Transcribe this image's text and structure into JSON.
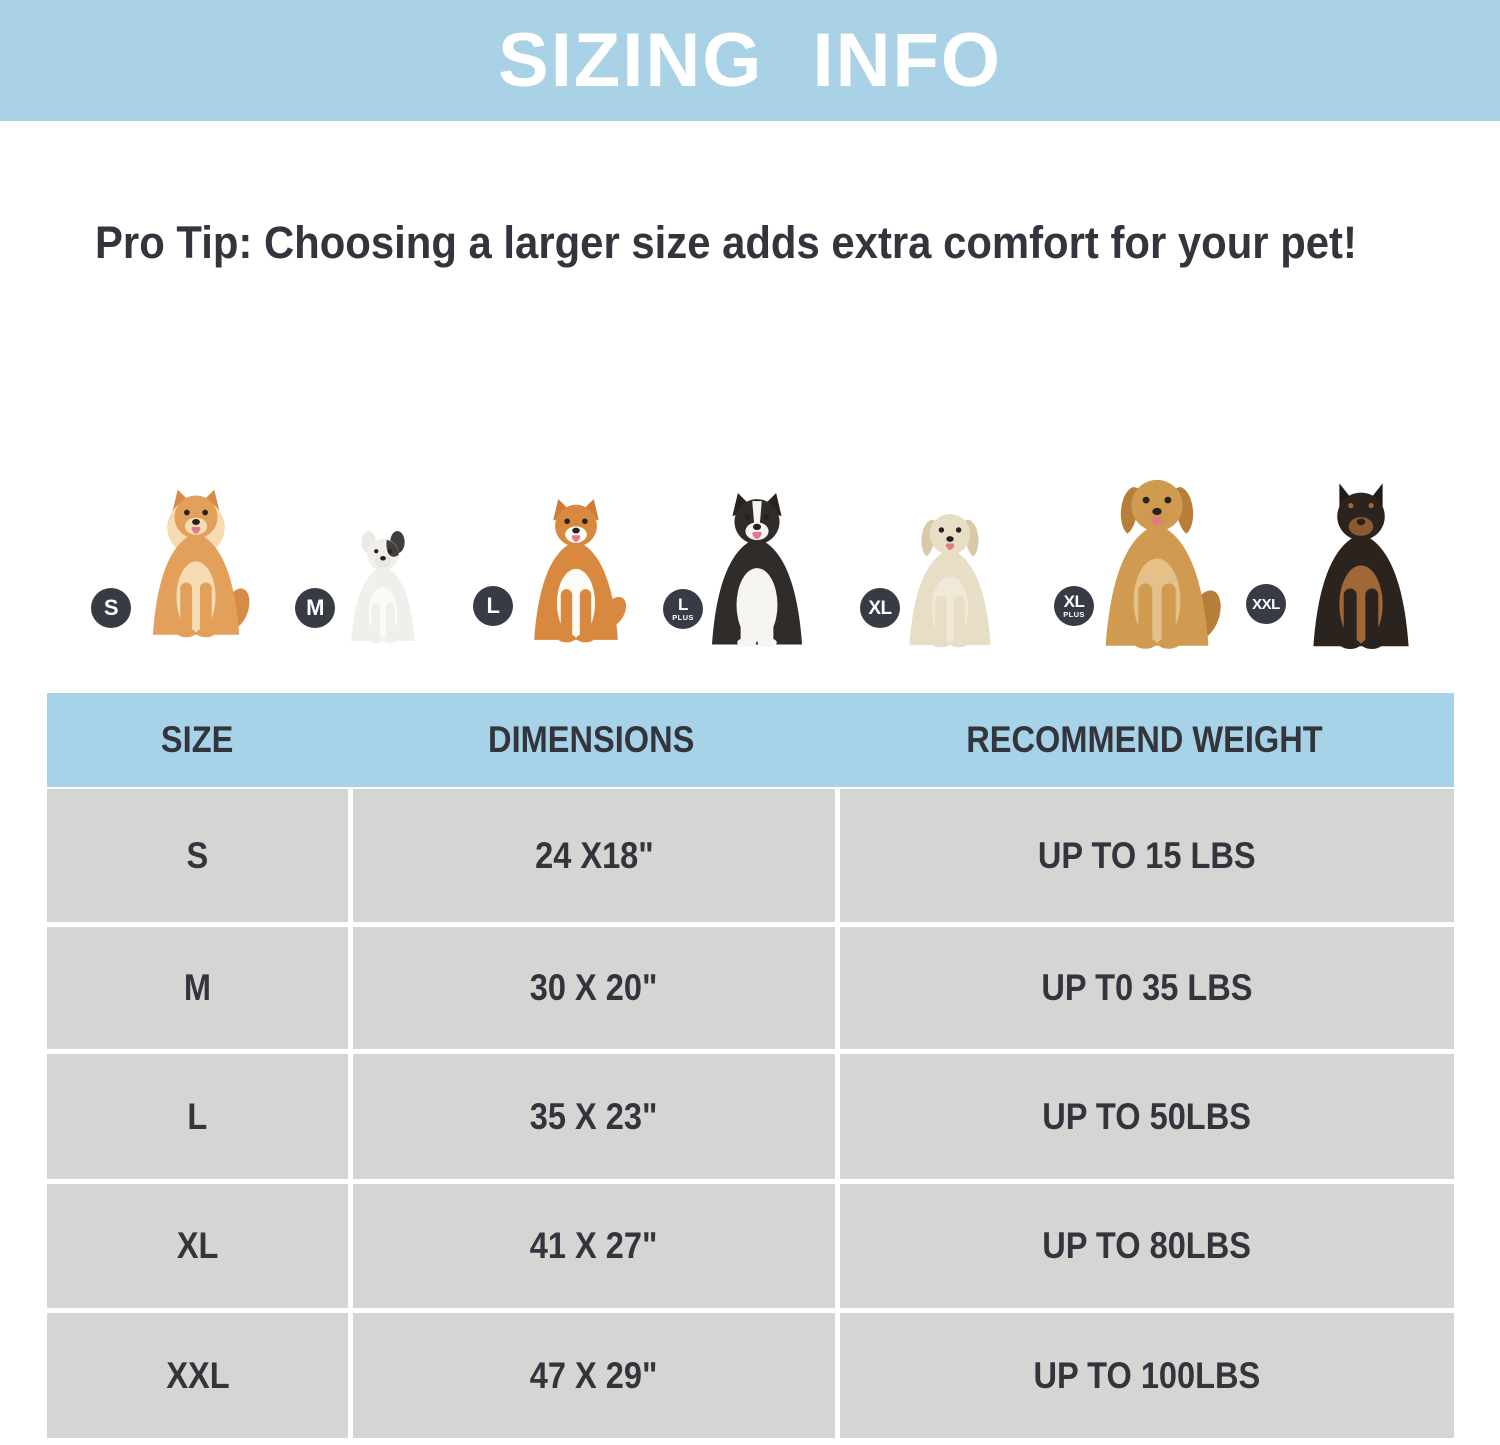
{
  "banner": {
    "title": "SIZING INFO"
  },
  "pro_tip": "Pro Tip: Choosing a larger size adds extra comfort for your pet!",
  "size_guide": {
    "dogs": [
      {
        "breed": "Pomeranian",
        "badge": "S",
        "badge_sub": ""
      },
      {
        "breed": "French Bulldog",
        "badge": "M",
        "badge_sub": ""
      },
      {
        "breed": "Shiba Inu",
        "badge": "L",
        "badge_sub": ""
      },
      {
        "breed": "Border Collie",
        "badge": "L",
        "badge_sub": "PLUS"
      },
      {
        "breed": "Labrador",
        "badge": "XL",
        "badge_sub": ""
      },
      {
        "breed": "Golden Retriever",
        "badge": "XL",
        "badge_sub": "PLUS"
      },
      {
        "breed": "Doberman",
        "badge": "XXL",
        "badge_sub": ""
      }
    ]
  },
  "table": {
    "headers": [
      "SIZE",
      "DIMENSIONS",
      "RECOMMEND WEIGHT"
    ],
    "rows": [
      {
        "size": "S",
        "dimensions": "24 X18\"",
        "weight": "UP TO 15 LBS"
      },
      {
        "size": "M",
        "dimensions": "30 X 20\"",
        "weight": "UP T0 35 LBS"
      },
      {
        "size": "L",
        "dimensions": "35 X 23\"",
        "weight": "UP TO 50LBS"
      },
      {
        "size": "XL",
        "dimensions": "41 X 27\"",
        "weight": "UP TO 80LBS"
      },
      {
        "size": "XXL",
        "dimensions": "47 X 29\"",
        "weight": "UP TO 100LBS"
      }
    ]
  },
  "colors": {
    "banner_bg": "#a9d2e6",
    "header_bg": "#a6d3e8",
    "row_bg": "#d5d5d4",
    "text_dark": "#34353c",
    "badge_bg": "#383b44",
    "badge_text": "#ffffff"
  }
}
